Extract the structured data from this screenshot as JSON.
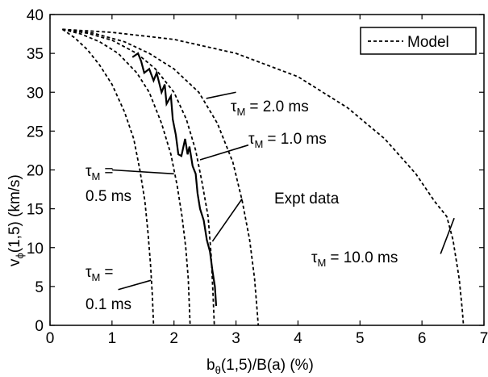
{
  "chart_data": {
    "type": "line",
    "xlabel": {
      "main": "b",
      "sub": "θ",
      "rest": "(1,5)/B(a)   (%)"
    },
    "ylabel": {
      "main": "v",
      "sub": "ϕ",
      "rest": "(1,5)   (km/s)"
    },
    "xlim": [
      0,
      7
    ],
    "ylim": [
      0,
      40
    ],
    "x_ticks": [
      "0",
      "1",
      "2",
      "3",
      "4",
      "5",
      "6",
      "7"
    ],
    "y_ticks": [
      "0",
      "5",
      "10",
      "15",
      "20",
      "25",
      "30",
      "35",
      "40"
    ],
    "grid": false,
    "legend": {
      "position": "top-right",
      "entries": [
        {
          "label": "Model",
          "style": "dashed"
        }
      ]
    },
    "series": [
      {
        "name": "Model",
        "tau_label": "0.1 ms",
        "style": "dashed",
        "points": [
          [
            0.2,
            38.1
          ],
          [
            0.4,
            37.0
          ],
          [
            0.6,
            35.5
          ],
          [
            0.8,
            33.5
          ],
          [
            1.0,
            31.0
          ],
          [
            1.2,
            27.5
          ],
          [
            1.35,
            24.0
          ],
          [
            1.45,
            20.0
          ],
          [
            1.53,
            16.0
          ],
          [
            1.58,
            12.0
          ],
          [
            1.62,
            8.0
          ],
          [
            1.65,
            4.0
          ],
          [
            1.67,
            0
          ]
        ]
      },
      {
        "name": "Model",
        "tau_label": "0.5 ms",
        "style": "dashed",
        "points": [
          [
            0.2,
            38.1
          ],
          [
            0.5,
            37.5
          ],
          [
            0.8,
            36.5
          ],
          [
            1.1,
            35.0
          ],
          [
            1.4,
            32.5
          ],
          [
            1.6,
            30.0
          ],
          [
            1.8,
            26.0
          ],
          [
            1.95,
            22.0
          ],
          [
            2.05,
            18.0
          ],
          [
            2.13,
            14.0
          ],
          [
            2.19,
            10.0
          ],
          [
            2.23,
            6.0
          ],
          [
            2.26,
            0
          ]
        ]
      },
      {
        "name": "Model",
        "tau_label": "1.0 ms",
        "style": "dashed",
        "points": [
          [
            0.2,
            38.1
          ],
          [
            0.6,
            37.6
          ],
          [
            1.0,
            36.7
          ],
          [
            1.4,
            35.0
          ],
          [
            1.7,
            33.0
          ],
          [
            2.0,
            30.0
          ],
          [
            2.2,
            26.5
          ],
          [
            2.35,
            22.5
          ],
          [
            2.45,
            18.5
          ],
          [
            2.55,
            14.0
          ],
          [
            2.6,
            9.0
          ],
          [
            2.63,
            4.0
          ],
          [
            2.65,
            0
          ]
        ]
      },
      {
        "name": "Model",
        "tau_label": "2.0 ms",
        "style": "dashed",
        "points": [
          [
            0.2,
            38.1
          ],
          [
            0.7,
            37.6
          ],
          [
            1.2,
            36.5
          ],
          [
            1.6,
            35.0
          ],
          [
            2.0,
            33.0
          ],
          [
            2.4,
            30.0
          ],
          [
            2.7,
            26.0
          ],
          [
            2.95,
            21.0
          ],
          [
            3.1,
            16.0
          ],
          [
            3.22,
            11.0
          ],
          [
            3.3,
            6.0
          ],
          [
            3.34,
            2.0
          ],
          [
            3.36,
            0
          ]
        ]
      },
      {
        "name": "Model",
        "tau_label": "10.0 ms",
        "style": "dashed",
        "points": [
          [
            0.2,
            38.1
          ],
          [
            1.0,
            37.7
          ],
          [
            2.0,
            36.8
          ],
          [
            3.0,
            35.0
          ],
          [
            4.0,
            32.0
          ],
          [
            4.8,
            28.0
          ],
          [
            5.4,
            24.0
          ],
          [
            5.9,
            19.5
          ],
          [
            6.2,
            16.0
          ],
          [
            6.4,
            14.0
          ],
          [
            6.5,
            11.0
          ],
          [
            6.6,
            6.0
          ],
          [
            6.65,
            2.0
          ],
          [
            6.67,
            0
          ]
        ]
      },
      {
        "name": "Expt data",
        "style": "solid",
        "points": [
          [
            1.33,
            34.5
          ],
          [
            1.42,
            35.0
          ],
          [
            1.47,
            34.0
          ],
          [
            1.52,
            32.5
          ],
          [
            1.6,
            33.0
          ],
          [
            1.67,
            31.5
          ],
          [
            1.72,
            32.5
          ],
          [
            1.8,
            30.0
          ],
          [
            1.85,
            31.0
          ],
          [
            1.88,
            28.5
          ],
          [
            1.95,
            29.5
          ],
          [
            1.98,
            26.5
          ],
          [
            2.03,
            24.5
          ],
          [
            2.07,
            22.0
          ],
          [
            2.12,
            21.8
          ],
          [
            2.18,
            24.0
          ],
          [
            2.22,
            22.0
          ],
          [
            2.25,
            23.0
          ],
          [
            2.3,
            20.5
          ],
          [
            2.35,
            19.5
          ],
          [
            2.38,
            17.0
          ],
          [
            2.42,
            15.0
          ],
          [
            2.48,
            13.5
          ],
          [
            2.53,
            11.0
          ],
          [
            2.58,
            9.5
          ],
          [
            2.62,
            7.0
          ],
          [
            2.66,
            5.0
          ],
          [
            2.68,
            2.5
          ]
        ]
      }
    ],
    "annotations": [
      {
        "symbol": "τ",
        "sub": "M",
        "text": "= 2.0 ms"
      },
      {
        "symbol": "τ",
        "sub": "M",
        "text": "= 1.0 ms"
      },
      {
        "symbol": "τ",
        "sub": "M",
        "text": "="
      },
      {
        "text": "0.5 ms"
      },
      {
        "text": "Expt data"
      },
      {
        "symbol": "τ",
        "sub": "M",
        "text": "= 10.0 ms"
      },
      {
        "symbol": "τ",
        "sub": "M",
        "text": "="
      },
      {
        "text": "0.1 ms"
      }
    ]
  }
}
